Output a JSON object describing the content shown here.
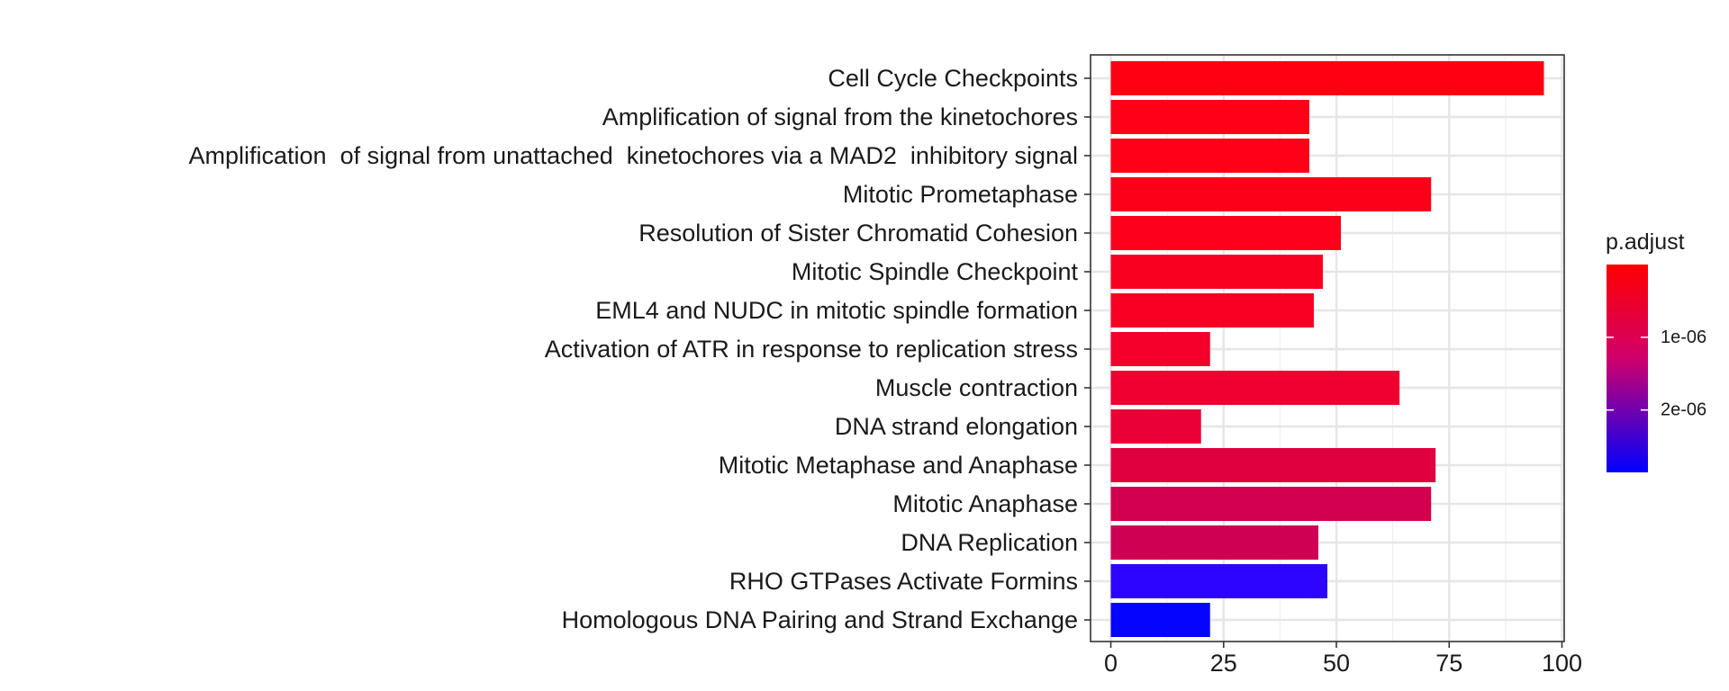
{
  "chart_data": {
    "type": "bar",
    "orientation": "horizontal",
    "categories": [
      "Cell Cycle Checkpoints",
      "Amplification of signal from the kinetochores",
      "Amplification  of signal from unattached  kinetochores via a MAD2  inhibitory signal",
      "Mitotic Prometaphase",
      "Resolution of Sister Chromatid Cohesion",
      "Mitotic Spindle Checkpoint",
      "EML4 and NUDC in mitotic spindle formation",
      "Activation of ATR in response to replication stress",
      "Muscle contraction",
      "DNA strand elongation",
      "Mitotic Metaphase and Anaphase",
      "Mitotic Anaphase",
      "DNA Replication",
      "RHO GTPases Activate Formins",
      "Homologous DNA Pairing and Strand Exchange"
    ],
    "values": [
      96,
      44,
      44,
      71,
      51,
      47,
      45,
      22,
      64,
      20,
      72,
      71,
      46,
      48,
      22
    ],
    "bar_colors": [
      "#FF0013",
      "#FF0016",
      "#FF0016",
      "#FD0019",
      "#FC001C",
      "#FA0020",
      "#F80024",
      "#F4002A",
      "#EF0030",
      "#EA0036",
      "#E1003F",
      "#D3004F",
      "#CF0054",
      "#2C04FF",
      "#0505FF"
    ],
    "xlim": [
      -4.5,
      100.5
    ],
    "xticks": [
      "0",
      "25",
      "50",
      "75",
      "100"
    ],
    "xtick_values": [
      0,
      25,
      50,
      75,
      100
    ],
    "xlabel": "",
    "ylabel": "",
    "title": "",
    "grid": true,
    "legend": {
      "title": "p.adjust",
      "position": "right",
      "type": "colorbar",
      "gradient_top": "#FF0000",
      "gradient_mid": "#D0006A",
      "gradient_bottom": "#0000FF",
      "ticks": [
        "1e-06",
        "2e-06"
      ],
      "tick_fractions": [
        0.35,
        0.7
      ]
    }
  }
}
